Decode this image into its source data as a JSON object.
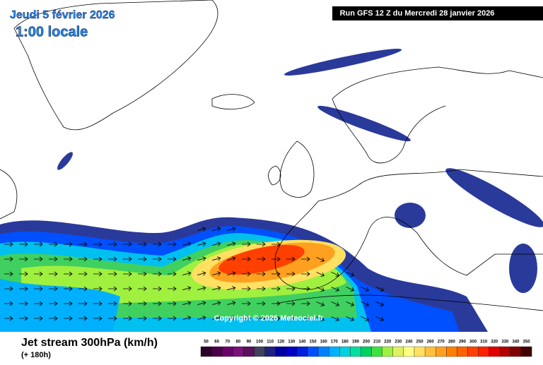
{
  "header": {
    "date": "Jeudi 5 février 2026",
    "time": "1:00 locale",
    "run": "Run GFS 12 Z du Mercredi 28 janvier 2026"
  },
  "copyright": "Copyright © 2026 Meteociel.fr",
  "footer": {
    "title": "Jet stream 300hPa (km/h)",
    "lead": "(+ 180h)"
  },
  "legend": {
    "values": [
      50,
      60,
      70,
      80,
      90,
      100,
      110,
      120,
      130,
      140,
      150,
      160,
      170,
      180,
      190,
      200,
      210,
      220,
      230,
      240,
      250,
      260,
      270,
      280,
      290,
      300,
      310,
      320,
      330,
      340,
      350
    ],
    "colors": [
      "#2a0028",
      "#4a0048",
      "#6a006a",
      "#7a107a",
      "#5a105a",
      "#404060",
      "#202080",
      "#0000a0",
      "#0000c8",
      "#0020e0",
      "#0050ff",
      "#0080ff",
      "#00b0ff",
      "#00d0e0",
      "#00e0a0",
      "#00d060",
      "#40e040",
      "#a0f040",
      "#e0f060",
      "#ffff80",
      "#ffe060",
      "#ffc040",
      "#ffa020",
      "#ff8000",
      "#ff6000",
      "#ff4000",
      "#ff2000",
      "#e00000",
      "#b00000",
      "#800000",
      "#400000"
    ]
  }
}
